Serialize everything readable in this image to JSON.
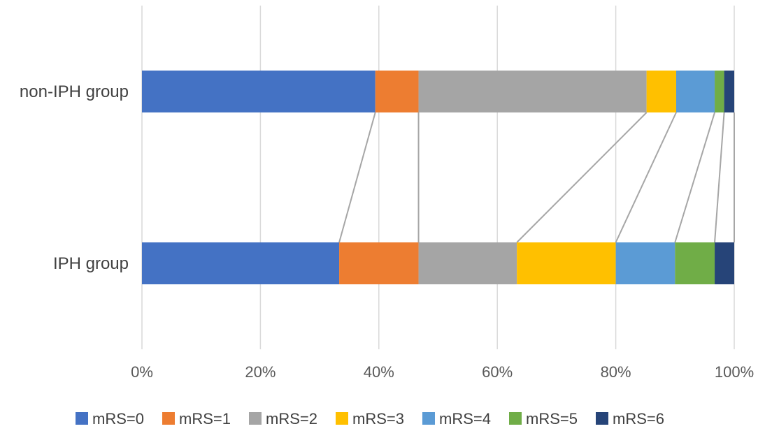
{
  "chart_data": {
    "type": "bar",
    "orientation": "horizontal",
    "stacked": "percent",
    "categories": [
      "non-IPH group",
      "IPH group"
    ],
    "series": [
      {
        "name": "mRS=0",
        "color": "#4472c4",
        "values": [
          39.4,
          33.3
        ]
      },
      {
        "name": "mRS=1",
        "color": "#ed7d31",
        "values": [
          7.3,
          13.4
        ]
      },
      {
        "name": "mRS=2",
        "color": "#a5a5a5",
        "values": [
          38.5,
          16.6
        ]
      },
      {
        "name": "mRS=3",
        "color": "#ffc000",
        "values": [
          5.0,
          16.7
        ]
      },
      {
        "name": "mRS=4",
        "color": "#5b9bd5",
        "values": [
          6.5,
          10.0
        ]
      },
      {
        "name": "mRS=5",
        "color": "#70ad47",
        "values": [
          1.6,
          6.7
        ]
      },
      {
        "name": "mRS=6",
        "color": "#264478",
        "values": [
          1.7,
          3.3
        ]
      }
    ],
    "xlim": [
      0,
      100
    ],
    "xticks": [
      "0%",
      "20%",
      "40%",
      "60%",
      "80%",
      "100%"
    ],
    "grid": "vertical",
    "series_lines": true,
    "legend": "bottom"
  }
}
